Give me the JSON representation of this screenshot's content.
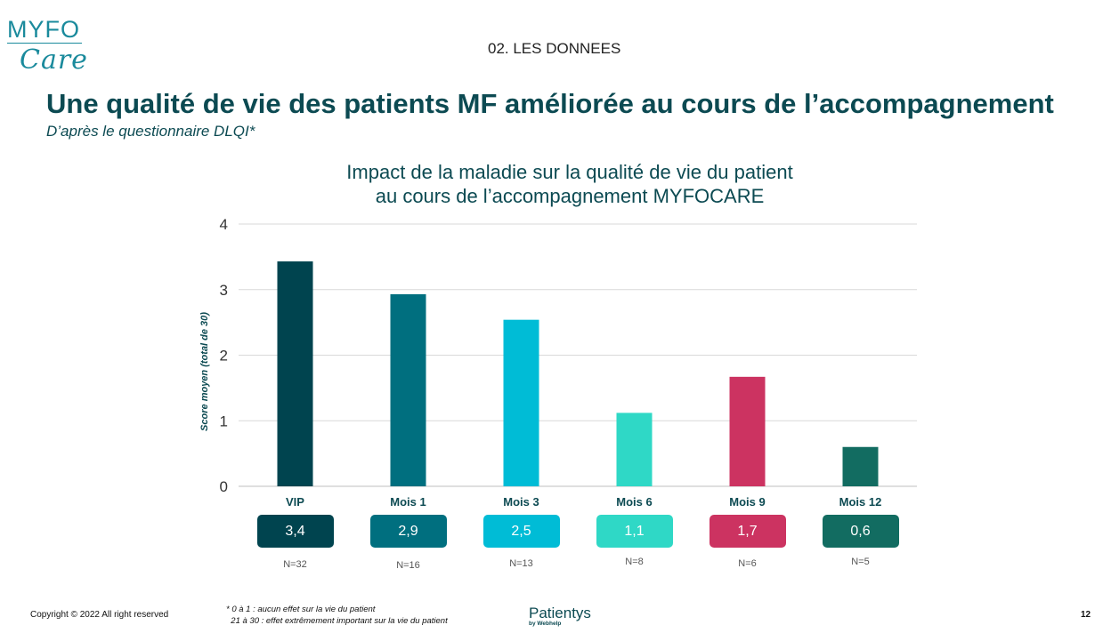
{
  "logo": {
    "top": "MYFO",
    "bottom": "Care"
  },
  "section_label": "02. LES DONNEES",
  "title": "Une qualité de vie des patients MF améliorée au cours de l’accompagnement",
  "subtitle": "D’après le questionnaire DLQI*",
  "chart_title_line1": "Impact de la maladie sur la qualité de vie du patient",
  "chart_title_line2": "au cours de l’accompagnement MYFOCARE",
  "chart_data": {
    "type": "bar",
    "title": "Impact de la maladie sur la qualité de vie du patient au cours de l’accompagnement MYFOCARE",
    "xlabel": "",
    "ylabel": "Score moyen (total de 30)",
    "ylim": [
      0,
      4
    ],
    "yticks": [
      "0",
      "1",
      "2",
      "3",
      "4"
    ],
    "grid": true,
    "categories": [
      "VIP",
      "Mois 1",
      "Mois 3",
      "Mois 6",
      "Mois 9",
      "Mois 12"
    ],
    "values": [
      3.43,
      2.93,
      2.54,
      1.12,
      1.67,
      0.6
    ],
    "value_labels": [
      "3,4",
      "2,9",
      "2,5",
      "1,1",
      "1,7",
      "0,6"
    ],
    "n_labels": [
      "N=32",
      "N=16",
      "N=13",
      "N=8",
      "N=6",
      "N=5"
    ],
    "colors": [
      "#00444f",
      "#006f7f",
      "#00bcd6",
      "#2fd8c6",
      "#cc3361",
      "#126c61"
    ]
  },
  "footer": {
    "copyright": "Copyright © 2022 All right reserved",
    "footnote_line1": "* 0 à 1 : aucun effet sur la vie du patient",
    "footnote_line2": "21 à 30 : effet extrêmement important sur la vie du patient",
    "brand": "Patientys",
    "brand_sub": "by Webhelp",
    "page_number": "12"
  }
}
